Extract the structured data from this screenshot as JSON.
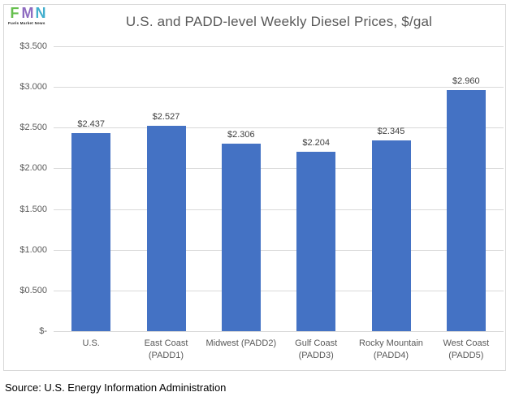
{
  "logo": {
    "letters": [
      {
        "char": "F",
        "color": "#66BF4E"
      },
      {
        "char": "M",
        "color": "#8E6BC0"
      },
      {
        "char": "N",
        "color": "#41AECD"
      }
    ],
    "subtitle": "Fuels Market News"
  },
  "title": "U.S. and PADD-level Weekly Diesel Prices, $/gal",
  "source_note": "Source: U.S. Energy Information Administration",
  "chart_data": {
    "type": "bar",
    "title": "U.S. and PADD-level Weekly Diesel Prices, $/gal",
    "categories": [
      [
        "U.S."
      ],
      [
        "East Coast",
        "(PADD1)"
      ],
      [
        "Midwest (PADD2)"
      ],
      [
        "Gulf Coast",
        "(PADD3)"
      ],
      [
        "Rocky Mountain",
        "(PADD4)"
      ],
      [
        "West Coast",
        "(PADD5)"
      ]
    ],
    "values": [
      2.437,
      2.527,
      2.306,
      2.204,
      2.345,
      2.96
    ],
    "data_labels": [
      "$2.437",
      "$2.527",
      "$2.306",
      "$2.204",
      "$2.345",
      "$2.960"
    ],
    "y_ticks": [
      "$3.500",
      "$3.000",
      "$2.500",
      "$2.000",
      "$1.500",
      "$1.000",
      "$0.500",
      "$-"
    ],
    "ylim": [
      0,
      3.5
    ],
    "xlabel": "",
    "ylabel": "",
    "grid": true,
    "legend": false,
    "bar_color": "#4472C4",
    "gridline_color": "#D9D9D9",
    "data_label_color": "#404040",
    "axis_text_color": "#595959",
    "title_color": "#595959",
    "border_color": "#D9D9D9"
  }
}
